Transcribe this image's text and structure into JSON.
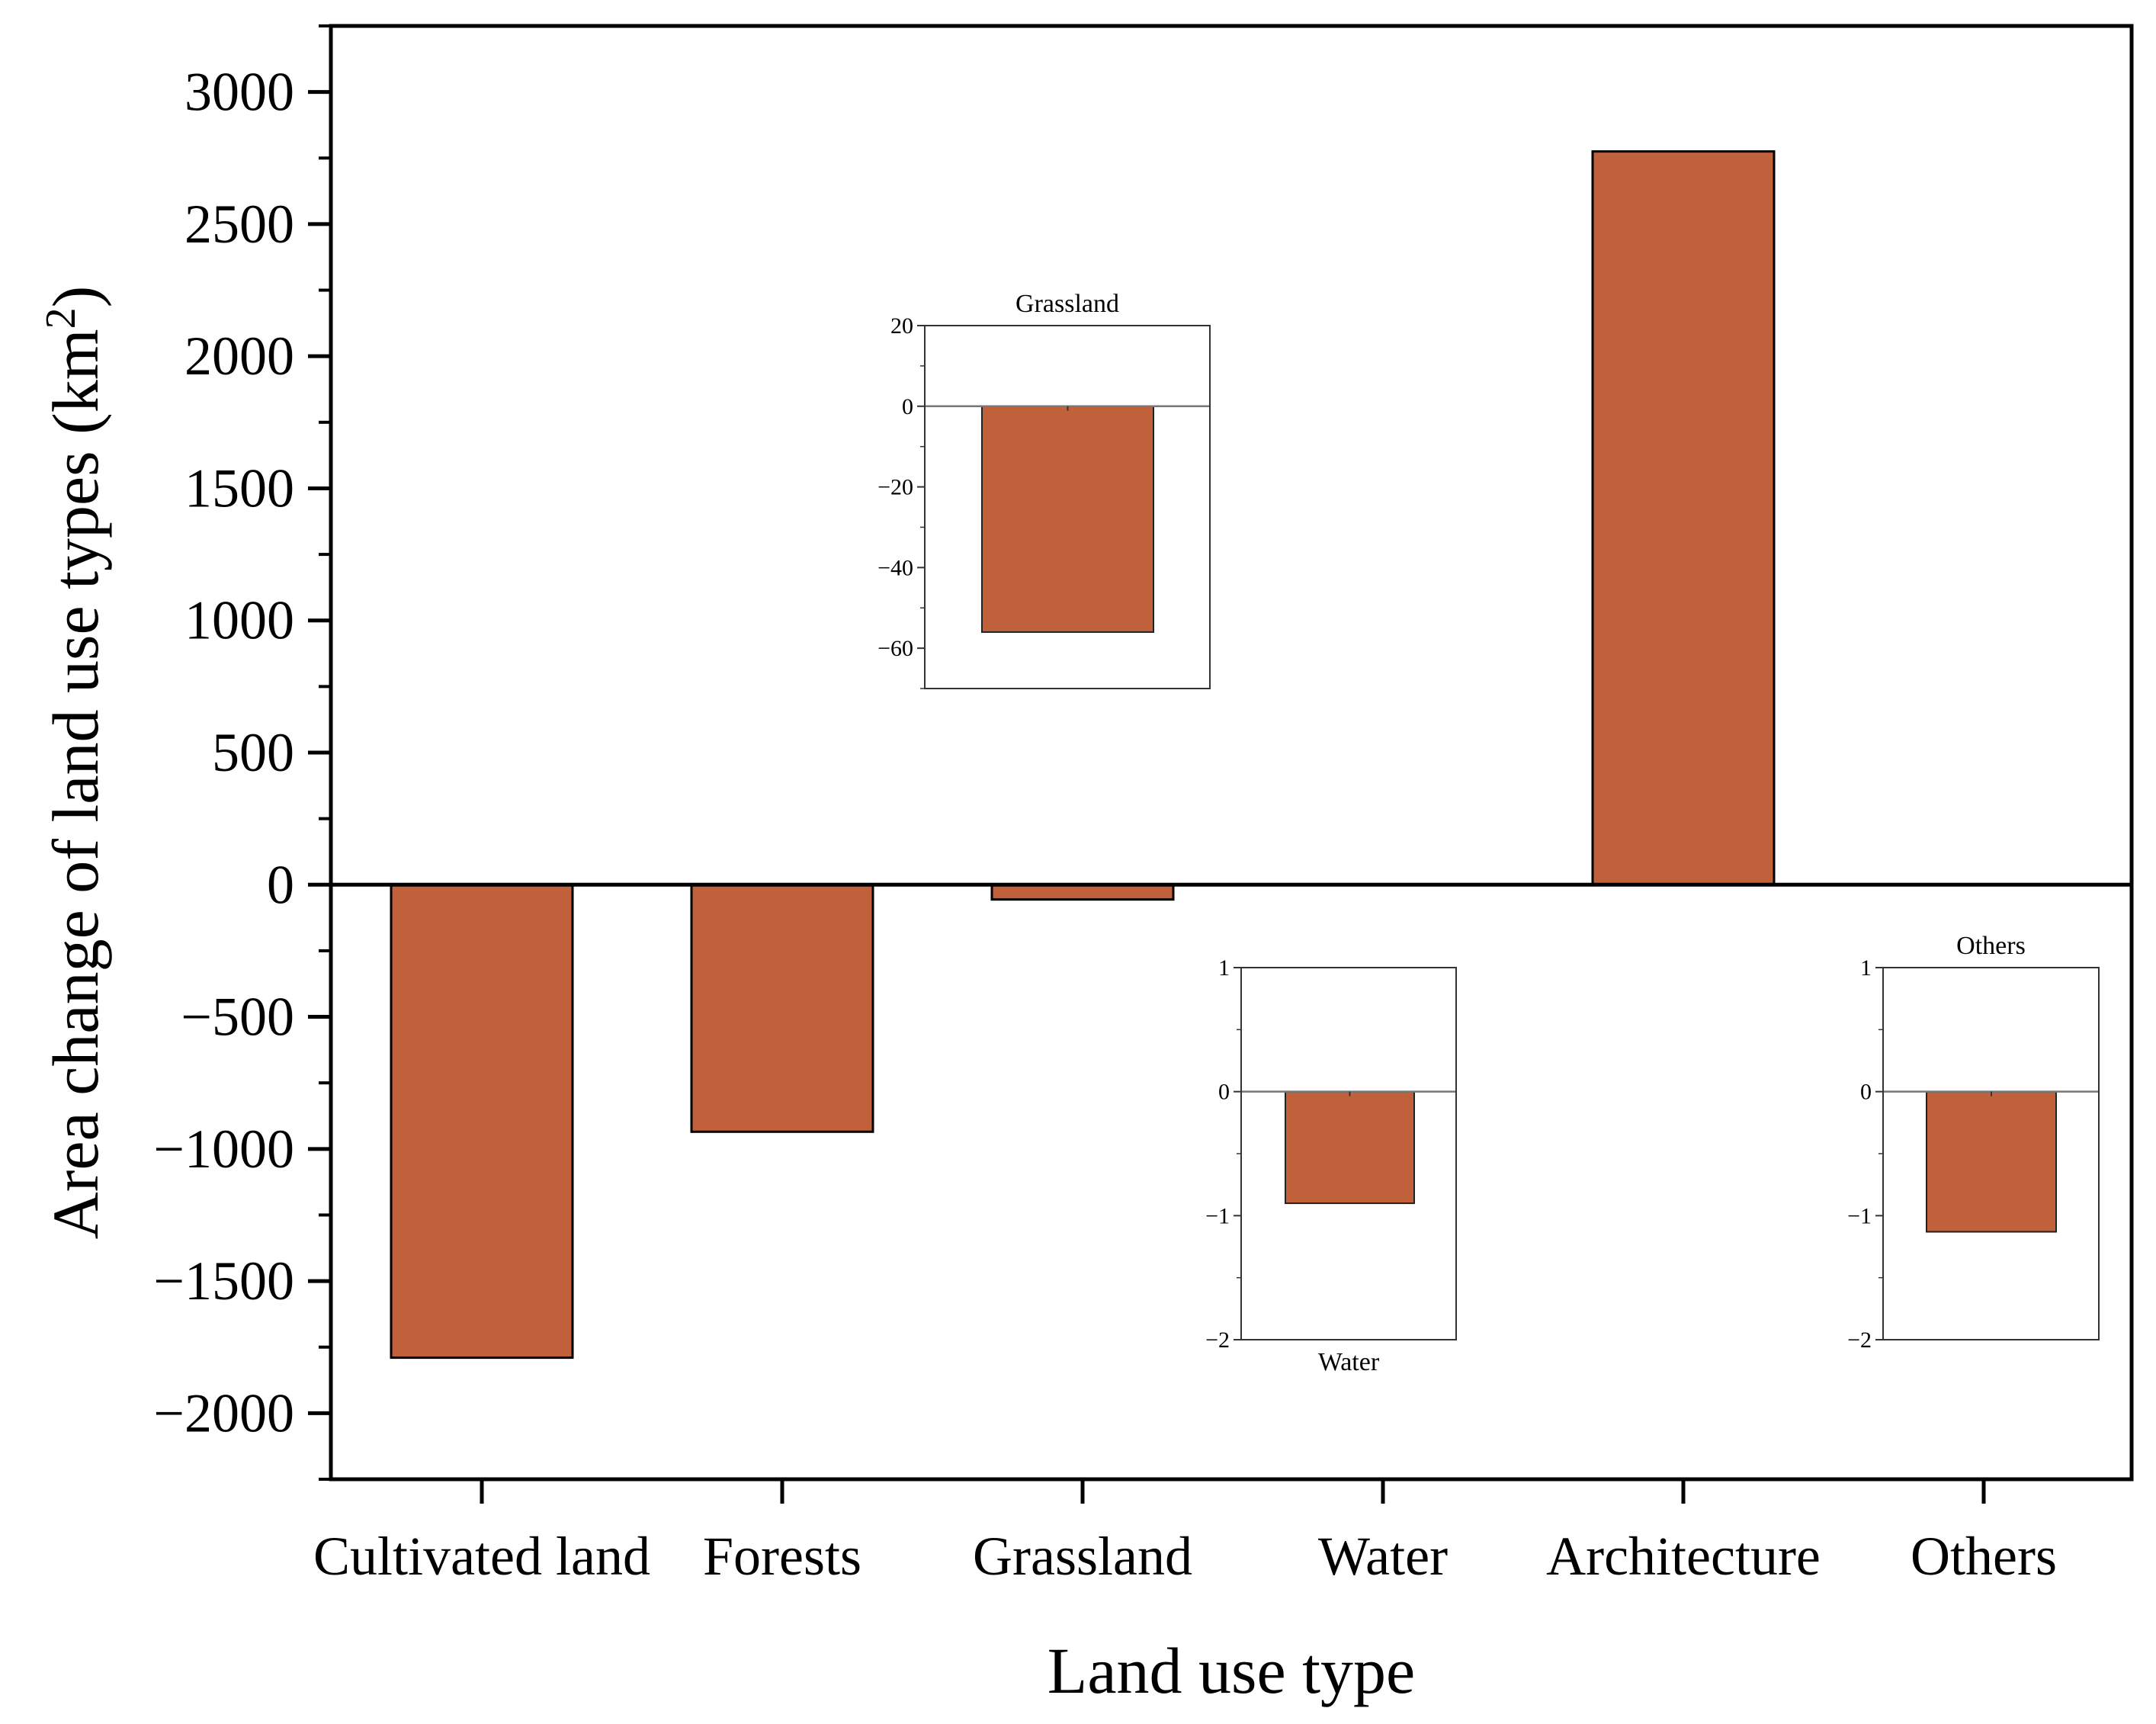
{
  "chart_data": [
    {
      "type": "bar",
      "role": "main",
      "title": "",
      "xlabel": "Land use type",
      "ylabel": "Area change of land use types (km",
      "ylabel_superscript": "2",
      "ylabel_suffix": ")",
      "categories": [
        "Cultivated land",
        "Forests",
        "Grassland",
        "Water",
        "Architecture",
        "Others"
      ],
      "values": [
        -1790,
        -935,
        -56,
        -0.9,
        2775,
        -1.1
      ],
      "ylim": [
        -2250,
        3250
      ],
      "yticks": [
        -2000,
        -1500,
        -1000,
        -500,
        0,
        500,
        1000,
        1500,
        2000,
        2500,
        3000
      ],
      "ytick_labels": [
        "−2000",
        "−1500",
        "−1000",
        "−500",
        "0",
        "500",
        "1000",
        "1500",
        "2000",
        "2500",
        "3000"
      ],
      "grid": false,
      "bar_color": "#c0613b"
    },
    {
      "type": "bar",
      "role": "inset",
      "title": "Grassland",
      "title_position": "top",
      "categories": [
        "Grassland"
      ],
      "values": [
        -56
      ],
      "ylim": [
        -70,
        20
      ],
      "yticks": [
        20,
        0,
        -20,
        -40,
        -60
      ],
      "ytick_labels": [
        "20",
        "0",
        "−20",
        "−40",
        "−60"
      ],
      "bar_color": "#c0613b"
    },
    {
      "type": "bar",
      "role": "inset",
      "title": "Water",
      "title_position": "bottom",
      "categories": [
        "Water"
      ],
      "values": [
        -0.9
      ],
      "ylim": [
        -2,
        1
      ],
      "yticks": [
        1,
        0,
        -1,
        -2
      ],
      "ytick_labels": [
        "1",
        "0",
        "−1",
        "−2"
      ],
      "bar_color": "#c0613b"
    },
    {
      "type": "bar",
      "role": "inset",
      "title": "Others",
      "title_position": "top",
      "categories": [
        "Others"
      ],
      "values": [
        -1.13
      ],
      "ylim": [
        -2,
        1
      ],
      "yticks": [
        1,
        0,
        -1,
        -2
      ],
      "ytick_labels": [
        "1",
        "0",
        "−1",
        "−2"
      ],
      "bar_color": "#c0613b"
    }
  ]
}
